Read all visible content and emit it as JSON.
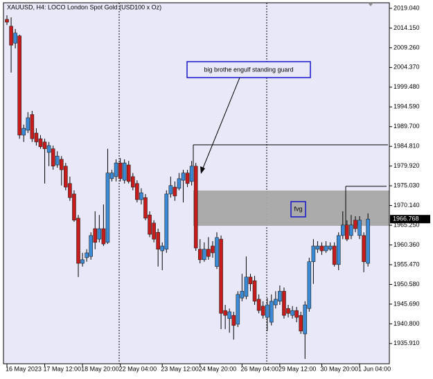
{
  "chart_data": {
    "type": "candlestick",
    "title": "XAUUSD, H4:  LOCO London Spot Gold (USD100 x Oz)",
    "categories": [
      "16 May 2023",
      null,
      null,
      null,
      null,
      null,
      null,
      null,
      null,
      "17 May 12:00",
      null,
      null,
      null,
      null,
      null,
      null,
      null,
      null,
      "18 May 20:00",
      null,
      null,
      null,
      null,
      null,
      null,
      null,
      null,
      "22 May 04:00",
      null,
      null,
      null,
      null,
      null,
      null,
      null,
      null,
      null,
      "23 May 12:00",
      null,
      null,
      null,
      null,
      null,
      null,
      null,
      null,
      "24 May 20:00",
      null,
      null,
      null,
      null,
      null,
      null,
      null,
      null,
      null,
      "26 May 04:00",
      null,
      null,
      null,
      null,
      null,
      null,
      null,
      null,
      "29 May 12:00",
      null,
      null,
      null,
      null,
      null,
      null,
      null,
      null,
      null,
      "30 May 20:00",
      null,
      null,
      null,
      null,
      null,
      null,
      null,
      null,
      "1 Jun 04:00",
      null,
      null
    ],
    "open": [
      2016.3,
      2014.6,
      2010.4,
      2012.2,
      1987.6,
      1988.8,
      1992.7,
      1988.1,
      1986.7,
      1985.9,
      1983.3,
      1984.2,
      1980.2,
      1981.6,
      1979.9,
      1975.6,
      1973.0,
      1967.0,
      1955.8,
      1957.2,
      1957.5,
      1964.4,
      1961.8,
      1964.4,
      1961.0,
      1976.8,
      1977.3,
      1980.7,
      1976.4,
      1980.2,
      1977.3,
      1975.6,
      1971.6,
      1972.1,
      1967.8,
      1965.8,
      1963.5,
      1958.9,
      1959.3,
      1973.0,
      1974.7,
      1974.4,
      1976.4,
      1978.2,
      1976.1,
      1979.9,
      1959.3,
      1956.7,
      1959.3,
      1960.1,
      1955.0,
      1961.8,
      1944.1,
      1942.1,
      1942.9,
      1940.7,
      1947.2,
      1947.6,
      1952.4,
      1951.5,
      1946.9,
      1945.2,
      1942.4,
      1941.2,
      1945.5,
      1946.4,
      1948.9,
      1944.6,
      1942.9,
      1944.1,
      1942.9,
      1938.3,
      1944.6,
      1956.2,
      1959.3,
      1960.1,
      1958.9,
      1959.3,
      1960.1,
      1955.5,
      1962.7,
      1965.3,
      1962.7,
      1966.5,
      1962.7,
      1962.7,
      1955.8
    ],
    "high": [
      2017.3,
      2016.8,
      2013.9,
      2012.5,
      1990.2,
      1993.3,
      1993.6,
      1989.3,
      1987.6,
      1986.7,
      1985.9,
      1985.0,
      1983.6,
      1982.4,
      1980.7,
      1977.3,
      1973.9,
      1967.8,
      1958.4,
      1959.3,
      1963.5,
      1968.7,
      1967.8,
      1970.4,
      1984.2,
      1979.0,
      1981.6,
      1981.9,
      1981.6,
      1981.2,
      1978.2,
      1976.4,
      1974.4,
      1973.0,
      1968.7,
      1966.5,
      1964.4,
      1961.0,
      1973.9,
      1977.3,
      1976.1,
      1978.2,
      1979.0,
      1979.0,
      1981.2,
      1980.7,
      1961.8,
      1961.0,
      1962.3,
      1961.3,
      1963.5,
      1962.7,
      1945.5,
      1944.6,
      1943.8,
      1948.9,
      1953.2,
      1957.5,
      1953.2,
      1952.7,
      1948.1,
      1946.4,
      1947.2,
      1948.1,
      1948.9,
      1950.3,
      1949.8,
      1945.5,
      1945.2,
      1945.0,
      1943.8,
      1946.4,
      1957.2,
      1961.8,
      1961.3,
      1961.0,
      1961.3,
      1961.0,
      1961.0,
      1963.5,
      1968.7,
      1966.5,
      1967.8,
      1967.5,
      1967.5,
      1963.5,
      1968.2
    ],
    "low": [
      2014.9,
      2003.1,
      2009.1,
      1986.7,
      1985.9,
      1988.1,
      1985.9,
      1985.0,
      1984.2,
      1975.6,
      1979.9,
      1979.0,
      1979.5,
      1975.1,
      1973.9,
      1971.3,
      1966.1,
      1952.4,
      1955.0,
      1956.2,
      1956.7,
      1959.3,
      1961.0,
      1960.1,
      1960.6,
      1976.1,
      1976.1,
      1976.1,
      1975.6,
      1975.6,
      1973.9,
      1970.9,
      1970.4,
      1966.5,
      1962.3,
      1961.0,
      1955.0,
      1954.1,
      1958.4,
      1972.1,
      1971.3,
      1973.9,
      1970.9,
      1974.7,
      1975.1,
      1958.9,
      1955.8,
      1956.2,
      1956.7,
      1957.2,
      1954.4,
      1939.5,
      1939.5,
      1938.6,
      1936.9,
      1940.0,
      1946.4,
      1946.9,
      1948.9,
      1945.5,
      1943.4,
      1942.1,
      1939.0,
      1940.4,
      1944.6,
      1945.5,
      1942.1,
      1942.4,
      1942.1,
      1941.2,
      1938.3,
      1932.1,
      1943.8,
      1950.7,
      1958.4,
      1957.9,
      1958.4,
      1958.9,
      1955.0,
      1954.1,
      1961.8,
      1961.3,
      1961.8,
      1963.5,
      1961.8,
      1953.6,
      1955.0
    ],
    "close": [
      2015.6,
      2009.9,
      2012.9,
      1987.6,
      1989.3,
      1991.9,
      1986.7,
      1985.9,
      1984.7,
      1984.2,
      1985.0,
      1979.9,
      1982.4,
      1979.0,
      1974.7,
      1972.1,
      1966.5,
      1955.8,
      1956.7,
      1958.4,
      1962.7,
      1961.0,
      1964.4,
      1960.6,
      1978.2,
      1978.2,
      1980.7,
      1976.8,
      1980.7,
      1976.1,
      1974.7,
      1971.6,
      1973.3,
      1967.0,
      1963.0,
      1961.8,
      1959.3,
      1960.1,
      1973.0,
      1975.1,
      1972.5,
      1976.8,
      1978.2,
      1975.6,
      1979.9,
      1959.6,
      1956.7,
      1959.3,
      1957.5,
      1958.4,
      1962.2,
      1943.4,
      1942.9,
      1943.8,
      1940.4,
      1948.1,
      1948.9,
      1952.4,
      1950.7,
      1946.4,
      1944.1,
      1942.9,
      1945.5,
      1946.4,
      1946.9,
      1948.9,
      1942.9,
      1943.4,
      1944.1,
      1942.4,
      1939.0,
      1945.5,
      1956.2,
      1960.1,
      1960.1,
      1958.9,
      1960.1,
      1960.1,
      1955.5,
      1962.7,
      1965.3,
      1961.8,
      1965.3,
      1964.4,
      1966.5,
      1956.2,
      1966.768
    ],
    "up_color": "#3a8ad6",
    "down_color": "#c81c1c",
    "ylim": [
      1930.9,
      2020.41
    ],
    "yticks": [
      {
        "value": 2019.04,
        "label": "2019.040"
      },
      {
        "value": 2014.15,
        "label": "2014.150"
      },
      {
        "value": 2009.26,
        "label": "2009.260"
      },
      {
        "value": 2004.37,
        "label": "2004.370"
      },
      {
        "value": 1999.48,
        "label": "1999.480"
      },
      {
        "value": 1994.59,
        "label": "1994.590"
      },
      {
        "value": 1989.7,
        "label": "1989.700"
      },
      {
        "value": 1984.81,
        "label": "1984.810"
      },
      {
        "value": 1979.92,
        "label": "1979.920"
      },
      {
        "value": 1975.03,
        "label": "1975.030"
      },
      {
        "value": 1970.14,
        "label": "1970.140"
      },
      {
        "value": 1965.25,
        "label": "1965.250"
      },
      {
        "value": 1960.36,
        "label": "1960.360"
      },
      {
        "value": 1955.47,
        "label": "1955.470"
      },
      {
        "value": 1950.58,
        "label": "1950.580"
      },
      {
        "value": 1945.69,
        "label": "1945.690"
      },
      {
        "value": 1940.8,
        "label": "1940.800"
      },
      {
        "value": 1935.91,
        "label": "1935.910"
      }
    ],
    "levels": [
      1985.19,
      1974.9
    ],
    "zone": {
      "high": 1973.85,
      "low": 1965.1
    },
    "annotations": [
      "big brothe engulf standing guard",
      "fvg"
    ]
  }
}
